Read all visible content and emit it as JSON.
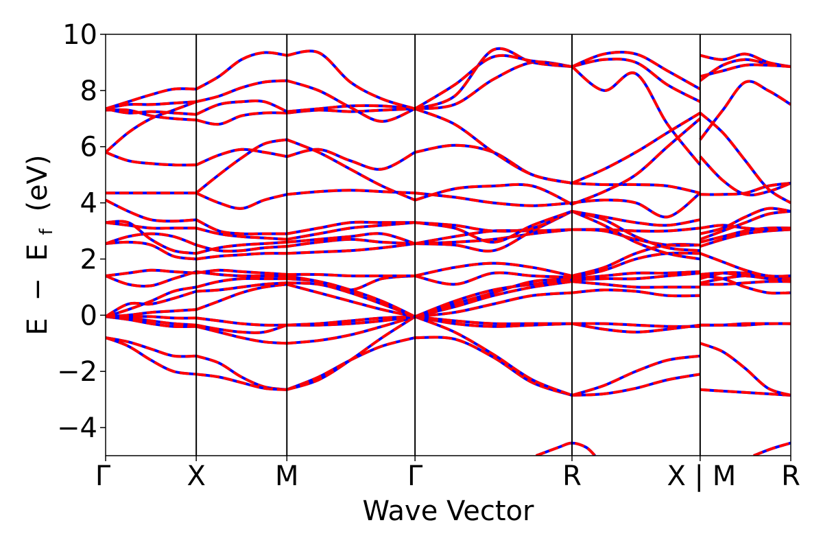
{
  "chart_data": {
    "type": "line",
    "xlabel": "Wave Vector",
    "ylabel": "E − E_f (eV)",
    "ylabel_parts": {
      "e": "E",
      "minus": "−",
      "ef_main": "E",
      "ef_sub": "f",
      "unit": "(eV)"
    },
    "ylim": [
      -5,
      10
    ],
    "yticks": [
      -4,
      -2,
      0,
      2,
      4,
      6,
      8,
      10
    ],
    "ytick_labels": [
      "−4",
      "−2",
      "0",
      "2",
      "4",
      "6",
      "8",
      "10"
    ],
    "xlim": [
      0,
      7.6
    ],
    "xticks": [
      {
        "x": 0.0,
        "label": "Γ"
      },
      {
        "x": 1.0,
        "label": "X"
      },
      {
        "x": 2.0,
        "label": "M"
      },
      {
        "x": 3.414,
        "label": "Γ"
      },
      {
        "x": 5.146,
        "label": "R"
      },
      {
        "x": 6.56,
        "label": "X | M"
      },
      {
        "x": 7.56,
        "label": "R"
      }
    ],
    "vertical_lines": [
      1.0,
      2.0,
      3.414,
      5.146,
      6.56
    ],
    "grid": false,
    "legend": "none",
    "styles": [
      {
        "color": "#0000ff",
        "dash": "none"
      },
      {
        "color": "#ff0000",
        "dash": "dashed"
      }
    ],
    "segments": [
      {
        "name": "Γ–X",
        "x": [
          0,
          0.25,
          0.5,
          0.75,
          1.0
        ],
        "bands": [
          [
            -0.8,
            -0.95,
            -1.2,
            -1.45,
            -1.45
          ],
          [
            -0.8,
            -1.1,
            -1.6,
            -2.0,
            -2.1
          ],
          [
            -0.05,
            -0.15,
            -0.3,
            -0.4,
            -0.4
          ],
          [
            -0.05,
            -0.1,
            -0.2,
            -0.3,
            -0.35
          ],
          [
            -0.05,
            -0.05,
            -0.05,
            -0.1,
            -0.1
          ],
          [
            -0.05,
            0.0,
            0.1,
            0.15,
            0.2
          ],
          [
            -0.05,
            0.4,
            0.4,
            0.6,
            0.85
          ],
          [
            -0.05,
            0.2,
            0.5,
            0.85,
            1.0
          ],
          [
            1.4,
            1.1,
            1.05,
            1.3,
            1.55
          ],
          [
            1.4,
            1.5,
            1.6,
            1.55,
            1.5
          ],
          [
            2.55,
            2.6,
            2.5,
            2.1,
            2.0
          ],
          [
            2.55,
            2.8,
            2.9,
            2.8,
            2.5
          ],
          [
            3.3,
            3.3,
            2.7,
            2.3,
            2.2
          ],
          [
            3.3,
            3.2,
            3.1,
            3.1,
            3.1
          ],
          [
            4.1,
            3.7,
            3.4,
            3.35,
            3.4
          ],
          [
            4.35,
            4.35,
            4.35,
            4.35,
            4.35
          ],
          [
            5.8,
            5.5,
            5.4,
            5.35,
            5.35
          ],
          [
            5.8,
            6.5,
            7.0,
            7.3,
            7.6
          ],
          [
            7.3,
            7.3,
            7.1,
            7.0,
            6.95
          ],
          [
            7.35,
            7.2,
            7.25,
            7.2,
            7.15
          ],
          [
            7.35,
            7.5,
            7.5,
            7.55,
            7.6
          ],
          [
            7.35,
            7.6,
            7.85,
            8.05,
            8.05
          ]
        ]
      },
      {
        "name": "X–M",
        "x": [
          1.0,
          1.25,
          1.5,
          1.75,
          2.0
        ],
        "bands": [
          [
            -1.45,
            -1.7,
            -2.2,
            -2.55,
            -2.65
          ],
          [
            -2.1,
            -2.2,
            -2.4,
            -2.6,
            -2.65
          ],
          [
            -0.4,
            -0.6,
            -0.8,
            -0.95,
            -1.0
          ],
          [
            -0.35,
            -0.5,
            -0.6,
            -0.6,
            -0.35
          ],
          [
            -0.1,
            -0.2,
            -0.3,
            -0.35,
            -0.35
          ],
          [
            0.2,
            0.5,
            0.8,
            1.0,
            1.1
          ],
          [
            0.85,
            0.9,
            1.0,
            1.1,
            1.15
          ],
          [
            1.0,
            1.2,
            1.3,
            1.3,
            1.3
          ],
          [
            1.55,
            1.45,
            1.4,
            1.4,
            1.4
          ],
          [
            1.5,
            1.6,
            1.55,
            1.5,
            1.45
          ],
          [
            2.0,
            2.1,
            2.15,
            2.2,
            2.2
          ],
          [
            2.5,
            2.3,
            2.3,
            2.4,
            2.45
          ],
          [
            2.2,
            2.4,
            2.5,
            2.55,
            2.6
          ],
          [
            3.1,
            2.9,
            2.8,
            2.75,
            2.7
          ],
          [
            3.4,
            3.0,
            2.9,
            2.9,
            2.9
          ],
          [
            4.35,
            4.0,
            3.8,
            4.1,
            4.3
          ],
          [
            5.35,
            5.7,
            5.9,
            5.8,
            5.65
          ],
          [
            4.35,
            5.0,
            5.6,
            6.1,
            6.25
          ],
          [
            6.95,
            6.8,
            7.1,
            7.2,
            7.2
          ],
          [
            7.15,
            7.5,
            7.6,
            7.6,
            7.25
          ],
          [
            7.6,
            7.8,
            8.1,
            8.3,
            8.35
          ],
          [
            8.05,
            8.5,
            9.1,
            9.35,
            9.25
          ]
        ]
      },
      {
        "name": "M–Γ",
        "x": [
          2.0,
          2.35,
          2.7,
          3.05,
          3.414
        ],
        "bands": [
          [
            -2.65,
            -2.2,
            -1.6,
            -1.1,
            -0.8
          ],
          [
            -2.65,
            -2.3,
            -1.6,
            -0.8,
            -0.05
          ],
          [
            -1.0,
            -0.9,
            -0.7,
            -0.4,
            -0.05
          ],
          [
            -0.35,
            -0.35,
            -0.3,
            -0.2,
            -0.05
          ],
          [
            -0.35,
            -0.3,
            -0.2,
            -0.1,
            -0.05
          ],
          [
            1.1,
            0.8,
            0.5,
            0.2,
            -0.05
          ],
          [
            1.15,
            1.1,
            0.8,
            0.4,
            -0.05
          ],
          [
            1.3,
            1.2,
            0.9,
            0.5,
            -0.05
          ],
          [
            1.4,
            1.2,
            0.9,
            1.3,
            1.4
          ],
          [
            1.45,
            1.45,
            1.4,
            1.4,
            1.4
          ],
          [
            2.2,
            2.25,
            2.3,
            2.4,
            2.55
          ],
          [
            2.45,
            2.6,
            2.7,
            2.6,
            2.55
          ],
          [
            2.6,
            2.7,
            2.8,
            2.9,
            2.55
          ],
          [
            2.7,
            2.9,
            3.1,
            3.2,
            3.3
          ],
          [
            2.9,
            3.1,
            3.3,
            3.3,
            3.3
          ],
          [
            4.3,
            4.4,
            4.45,
            4.4,
            4.35
          ],
          [
            5.65,
            5.9,
            5.5,
            5.2,
            5.8
          ],
          [
            6.25,
            5.8,
            5.2,
            4.6,
            4.1
          ],
          [
            7.2,
            7.3,
            7.25,
            7.3,
            7.35
          ],
          [
            7.25,
            7.35,
            7.45,
            7.45,
            7.35
          ],
          [
            8.35,
            8.0,
            7.4,
            6.9,
            7.35
          ],
          [
            9.25,
            9.35,
            8.3,
            7.7,
            7.35
          ]
        ]
      },
      {
        "name": "Γ–R",
        "x": [
          3.414,
          3.85,
          4.28,
          4.71,
          5.146
        ],
        "bands": [
          [
            -0.8,
            -0.85,
            -1.5,
            -2.4,
            -2.85
          ],
          [
            -0.05,
            -0.6,
            -1.4,
            -2.3,
            -2.85
          ],
          [
            -0.05,
            -0.3,
            -0.4,
            -0.35,
            -0.3
          ],
          [
            -0.05,
            -0.2,
            -0.3,
            -0.3,
            -0.3
          ],
          [
            -0.05,
            0.1,
            0.4,
            0.7,
            0.8
          ],
          [
            -0.05,
            0.3,
            0.7,
            1.0,
            1.2
          ],
          [
            -0.05,
            0.5,
            0.9,
            1.1,
            1.25
          ],
          [
            -0.05,
            0.4,
            0.8,
            1.2,
            1.3
          ],
          [
            1.4,
            1.1,
            1.5,
            1.4,
            1.35
          ],
          [
            1.4,
            1.7,
            1.85,
            1.7,
            1.4
          ],
          [
            2.55,
            2.6,
            2.7,
            2.9,
            3.05
          ],
          [
            2.55,
            2.8,
            3.0,
            3.0,
            3.05
          ],
          [
            2.55,
            2.5,
            2.3,
            3.0,
            3.7
          ],
          [
            3.3,
            3.2,
            3.0,
            3.1,
            3.7
          ],
          [
            3.3,
            3.1,
            2.6,
            3.2,
            3.7
          ],
          [
            4.35,
            4.2,
            4.0,
            3.9,
            4.0
          ],
          [
            5.8,
            6.05,
            5.8,
            5.0,
            4.7
          ],
          [
            4.1,
            4.5,
            4.6,
            4.6,
            3.95
          ],
          [
            7.35,
            6.8,
            5.8,
            5.0,
            4.7
          ],
          [
            7.35,
            7.5,
            8.4,
            9.0,
            8.85
          ],
          [
            7.35,
            7.8,
            9.45,
            9.0,
            8.85
          ],
          [
            7.35,
            8.2,
            9.2,
            9.05,
            8.85
          ]
        ]
      },
      {
        "name": "R–X",
        "x": [
          5.146,
          5.5,
          5.85,
          6.2,
          6.56
        ],
        "bands": [
          [
            -2.85,
            -2.8,
            -2.6,
            -2.3,
            -2.1
          ],
          [
            -2.85,
            -2.5,
            -2.0,
            -1.6,
            -1.45
          ],
          [
            -0.3,
            -0.3,
            -0.35,
            -0.4,
            -0.4
          ],
          [
            -0.3,
            -0.5,
            -0.6,
            -0.5,
            -0.35
          ],
          [
            0.8,
            0.9,
            0.85,
            0.7,
            0.7
          ],
          [
            1.2,
            1.1,
            1.0,
            1.0,
            1.0
          ],
          [
            1.25,
            1.3,
            1.3,
            1.4,
            1.5
          ],
          [
            1.3,
            1.4,
            1.5,
            1.5,
            1.55
          ],
          [
            1.35,
            1.6,
            2.0,
            2.2,
            2.2
          ],
          [
            1.4,
            1.7,
            2.2,
            2.5,
            2.5
          ],
          [
            3.05,
            3.05,
            3.0,
            3.0,
            3.1
          ],
          [
            3.05,
            3.0,
            2.7,
            2.5,
            2.5
          ],
          [
            3.7,
            3.2,
            2.6,
            2.2,
            2.0
          ],
          [
            3.7,
            3.4,
            2.8,
            2.4,
            2.3
          ],
          [
            3.7,
            3.5,
            3.3,
            3.2,
            3.4
          ],
          [
            4.0,
            4.1,
            4.0,
            3.5,
            4.35
          ],
          [
            4.7,
            4.65,
            4.65,
            4.6,
            4.35
          ],
          [
            3.95,
            4.4,
            5.0,
            6.0,
            7.0
          ],
          [
            4.7,
            5.2,
            5.8,
            6.5,
            7.2
          ],
          [
            8.85,
            9.1,
            9.0,
            8.2,
            7.6
          ],
          [
            8.85,
            9.3,
            9.3,
            8.7,
            8.05
          ],
          [
            8.85,
            8.0,
            8.6,
            6.8,
            5.35
          ]
        ]
      },
      {
        "name": "M–R",
        "x": [
          6.56,
          6.81,
          7.06,
          7.31,
          7.56
        ],
        "bands": [
          [
            -2.65,
            -2.7,
            -2.75,
            -2.8,
            -2.85
          ],
          [
            -1.0,
            -1.3,
            -1.9,
            -2.6,
            -2.85
          ],
          [
            -0.35,
            -0.35,
            -0.35,
            -0.3,
            -0.3
          ],
          [
            -0.35,
            -0.35,
            -0.3,
            -0.3,
            -0.3
          ],
          [
            1.1,
            1.1,
            1.15,
            1.2,
            1.2
          ],
          [
            1.15,
            1.3,
            1.4,
            1.3,
            1.25
          ],
          [
            1.3,
            1.5,
            1.5,
            1.4,
            1.3
          ],
          [
            1.4,
            1.3,
            1.0,
            0.8,
            0.8
          ],
          [
            1.45,
            1.5,
            1.4,
            1.35,
            1.35
          ],
          [
            2.2,
            1.9,
            1.6,
            1.4,
            1.4
          ],
          [
            2.45,
            2.7,
            2.9,
            3.0,
            3.05
          ],
          [
            2.6,
            2.8,
            3.0,
            3.1,
            3.1
          ],
          [
            2.7,
            3.0,
            3.3,
            3.6,
            3.7
          ],
          [
            2.9,
            3.1,
            3.5,
            3.8,
            3.7
          ],
          [
            3.1,
            3.2,
            3.1,
            3.05,
            3.05
          ],
          [
            4.3,
            4.3,
            4.35,
            4.6,
            4.7
          ],
          [
            5.65,
            4.8,
            4.3,
            4.4,
            4.7
          ],
          [
            6.25,
            7.3,
            8.3,
            8.0,
            7.5
          ],
          [
            7.2,
            6.5,
            5.5,
            4.5,
            4.0
          ],
          [
            8.35,
            8.9,
            9.1,
            8.95,
            8.85
          ],
          [
            9.25,
            9.1,
            9.3,
            9.0,
            8.85
          ],
          [
            8.5,
            8.7,
            8.9,
            8.9,
            8.85
          ]
        ]
      }
    ],
    "low_bands": [
      {
        "x": [
          4.75,
          5.0,
          5.146,
          5.3,
          5.4
        ],
        "y": [
          -5.0,
          -4.7,
          -4.55,
          -4.7,
          -5.0
        ]
      },
      {
        "x": [
          7.15,
          7.35,
          7.56
        ],
        "y": [
          -5.0,
          -4.75,
          -4.55
        ]
      }
    ]
  }
}
